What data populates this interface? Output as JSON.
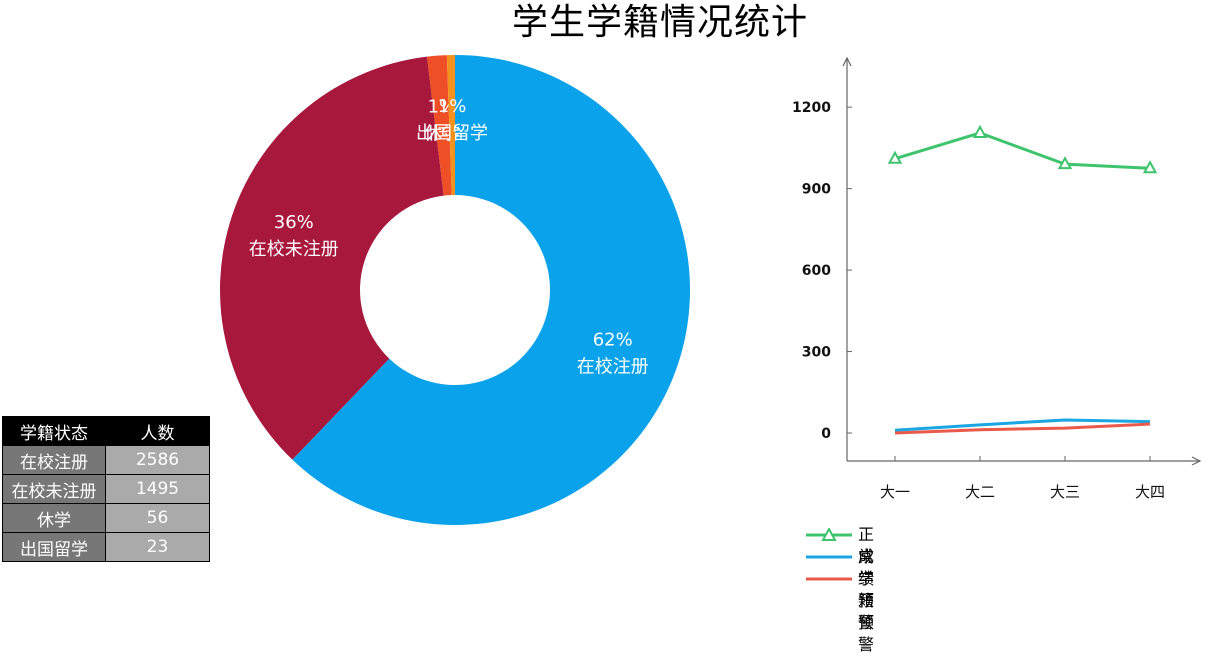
{
  "title": "学生学籍情况统计",
  "chart_data": [
    {
      "type": "pie",
      "slices": [
        {
          "label": "在校注册",
          "value": 2586,
          "percent_label": "62%",
          "color": "#0aa2ea"
        },
        {
          "label": "在校未注册",
          "value": 1495,
          "percent_label": "36%",
          "color": "#a8173c"
        },
        {
          "label": "休学",
          "value": 56,
          "percent_label": "1%",
          "color": "#ef4f26"
        },
        {
          "label": "出国留学",
          "value": 23,
          "percent_label": "1%",
          "color": "#f5921e"
        }
      ]
    },
    {
      "type": "line",
      "categories": [
        "大一",
        "大二",
        "大三",
        "大四"
      ],
      "ylim": [
        0,
        1300
      ],
      "yticks": [
        0,
        300,
        600,
        900,
        1200
      ],
      "series": [
        {
          "name": "正常",
          "values": [
            1010,
            1105,
            990,
            975
          ],
          "color": "#3ec46d",
          "marker": "triangle"
        },
        {
          "name": "成绩预警",
          "values": [
            10,
            30,
            48,
            42
          ],
          "color": "#1aa5e3"
        },
        {
          "name": "学籍预警",
          "values": [
            0,
            12,
            18,
            33
          ],
          "color": "#ea5a4a"
        }
      ]
    }
  ],
  "table": {
    "headers": [
      "学籍状态",
      "人数"
    ],
    "rows": [
      [
        "在校注册",
        "2586"
      ],
      [
        "在校未注册",
        "1495"
      ],
      [
        "休学",
        "56"
      ],
      [
        "出国留学",
        "23"
      ]
    ]
  }
}
